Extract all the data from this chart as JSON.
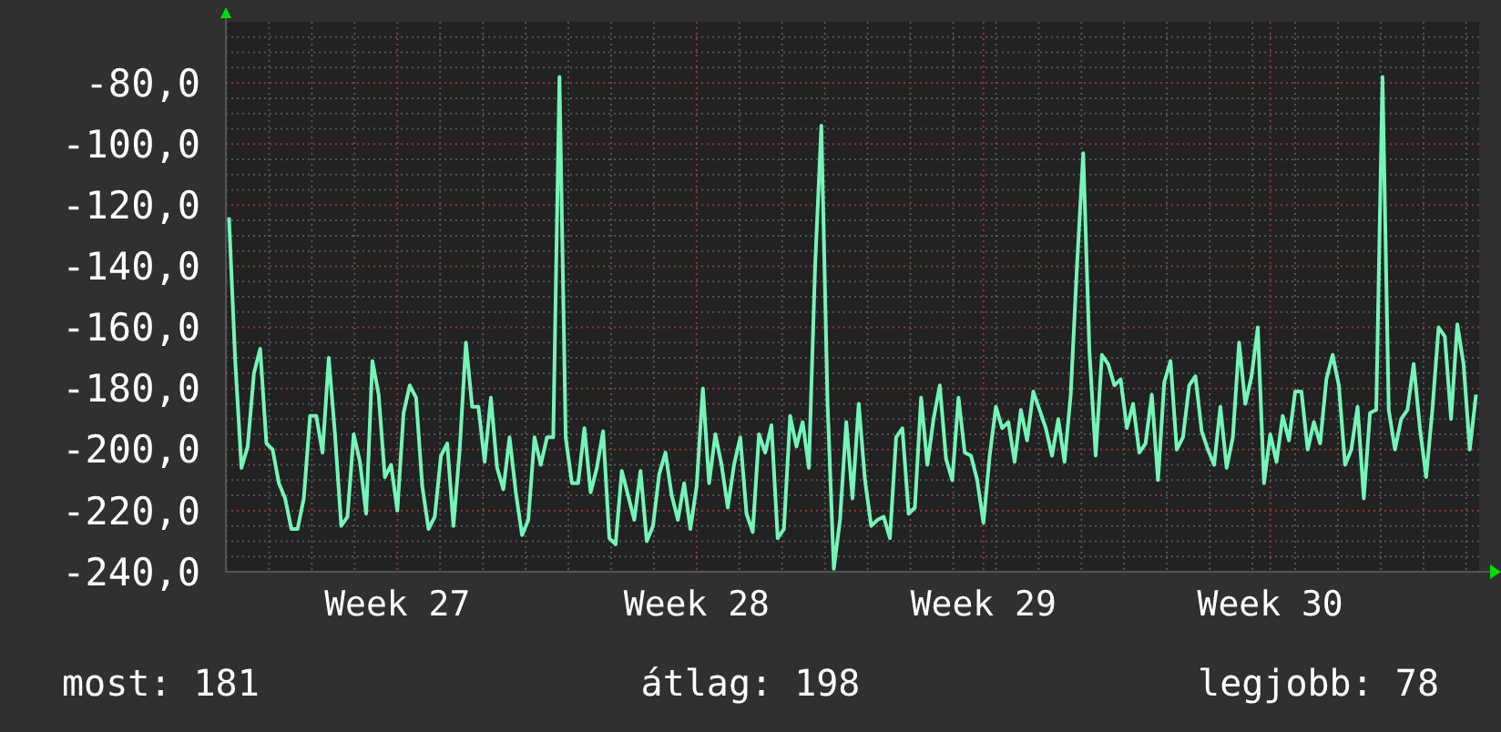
{
  "chart_data": {
    "type": "line",
    "ylim": [
      -240,
      -60
    ],
    "categories": [
      null,
      null,
      null,
      null,
      null,
      null,
      null,
      null,
      null,
      null,
      null,
      null,
      null,
      null,
      null,
      null,
      null,
      null,
      null,
      null,
      null,
      null,
      null,
      null,
      null,
      null,
      null,
      "Week 27",
      null,
      null,
      null,
      null,
      null,
      null,
      null,
      null,
      null,
      null,
      null,
      null,
      null,
      null,
      null,
      null,
      null,
      null,
      null,
      null,
      null,
      null,
      null,
      null,
      null,
      null,
      null,
      null,
      null,
      null,
      null,
      null,
      null,
      null,
      null,
      null,
      null,
      null,
      null,
      null,
      null,
      null,
      null,
      null,
      null,
      null,
      null,
      "Week 28",
      null,
      null,
      null,
      null,
      null,
      null,
      null,
      null,
      null,
      null,
      null,
      null,
      null,
      null,
      null,
      null,
      null,
      null,
      null,
      null,
      null,
      null,
      null,
      null,
      null,
      null,
      null,
      null,
      null,
      null,
      null,
      null,
      null,
      null,
      null,
      null,
      null,
      null,
      null,
      null,
      null,
      null,
      null,
      null,
      null,
      "Week 29",
      null,
      null,
      null,
      null,
      null,
      null,
      null,
      null,
      null,
      null,
      null,
      null,
      null,
      null,
      null,
      null,
      null,
      null,
      null,
      null,
      null,
      null,
      null,
      null,
      null,
      null,
      null,
      null,
      null,
      null,
      null,
      null,
      null,
      null,
      null,
      null,
      null,
      null,
      null,
      null,
      null,
      null,
      null,
      null,
      null,
      "Week 30",
      null,
      null,
      null,
      null,
      null,
      null,
      null,
      null,
      null,
      null,
      null,
      null,
      null,
      null,
      null,
      null,
      null,
      null,
      null,
      null,
      null,
      null,
      null,
      null,
      null,
      null,
      null,
      null,
      null,
      null,
      null,
      null,
      null
    ],
    "yticks": [
      {
        "value": -240,
        "label": "-240,0"
      },
      {
        "value": -220,
        "label": "-220,0"
      },
      {
        "value": -200,
        "label": "-200,0"
      },
      {
        "value": -180,
        "label": "-180,0"
      },
      {
        "value": -160,
        "label": "-160,0"
      },
      {
        "value": -140,
        "label": "-140,0"
      },
      {
        "value": -120,
        "label": "-120,0"
      },
      {
        "value": -100,
        "label": "-100,0"
      },
      {
        "value": -80,
        "label": "-80,0"
      }
    ],
    "grid": true,
    "annotations": [
      "most: 181",
      "átlag: 198",
      "legjobb: 78"
    ],
    "series": [
      {
        "color": "#74f5b8",
        "values": [
          -124,
          -171,
          -206,
          -199,
          -175,
          -167,
          -198,
          -200,
          -211,
          -216,
          -226,
          -226,
          -216,
          -189,
          -189,
          -201,
          -170,
          -195,
          -225,
          -222,
          -195,
          -204,
          -221,
          -171,
          -182,
          -209,
          -205,
          -220,
          -188,
          -179,
          -183,
          -212,
          -226,
          -222,
          -202,
          -198,
          -225,
          -200,
          -165,
          -186,
          -186,
          -204,
          -183,
          -206,
          -213,
          -196,
          -214,
          -228,
          -223,
          -196,
          -205,
          -196,
          -196,
          -78,
          -196,
          -211,
          -211,
          -193,
          -214,
          -206,
          -194,
          -229,
          -231,
          -207,
          -215,
          -223,
          -207,
          -230,
          -225,
          -208,
          -201,
          -215,
          -223,
          -211,
          -226,
          -212,
          -180,
          -211,
          -195,
          -205,
          -219,
          -205,
          -196,
          -221,
          -227,
          -195,
          -201,
          -192,
          -229,
          -226,
          -189,
          -199,
          -191,
          -206,
          -140,
          -94,
          -185,
          -239,
          -223,
          -191,
          -216,
          -185,
          -210,
          -225,
          -223,
          -222,
          -229,
          -196,
          -193,
          -221,
          -219,
          -183,
          -205,
          -190,
          -179,
          -203,
          -210,
          -183,
          -201,
          -202,
          -210,
          -224,
          -202,
          -186,
          -193,
          -191,
          -204,
          -187,
          -197,
          -181,
          -187,
          -193,
          -202,
          -190,
          -204,
          -182,
          -140,
          -103,
          -168,
          -202,
          -169,
          -172,
          -179,
          -177,
          -193,
          -185,
          -201,
          -198,
          -182,
          -210,
          -178,
          -171,
          -200,
          -196,
          -179,
          -176,
          -194,
          -200,
          -205,
          -186,
          -206,
          -196,
          -165,
          -185,
          -176,
          -160,
          -211,
          -195,
          -204,
          -189,
          -197,
          -181,
          -181,
          -200,
          -191,
          -198,
          -177,
          -169,
          -179,
          -205,
          -200,
          -186,
          -216,
          -188,
          -187,
          -78,
          -187,
          -200,
          -190,
          -187,
          -172,
          -193,
          -209,
          -187,
          -160,
          -163,
          -190,
          -159,
          -172,
          -200,
          -182
        ]
      }
    ]
  }
}
